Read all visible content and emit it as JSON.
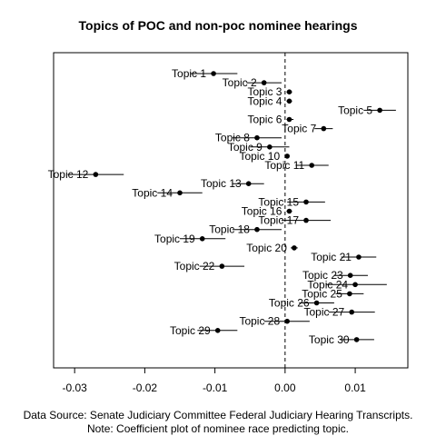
{
  "chart_data": {
    "type": "scatter",
    "title": "Topics of POC and non-poc nominee hearings",
    "xlabel": "",
    "ylabel": "",
    "xlim": [
      -0.033,
      0.0175
    ],
    "xticks": [
      "-0.03",
      "-0.02",
      "-0.01",
      "0.00",
      "0.01"
    ],
    "xtick_values": [
      -0.03,
      -0.02,
      -0.01,
      0.0,
      0.01
    ],
    "reference_line": 0.0,
    "grid": false,
    "legend": "none",
    "points": [
      {
        "label": "Topic 1",
        "estimate": -0.0102,
        "low": -0.0135,
        "high": -0.0068
      },
      {
        "label": "Topic 2",
        "estimate": -0.003,
        "low": -0.0055,
        "high": -0.0005
      },
      {
        "label": "Topic 3",
        "estimate": 0.0006,
        "low": 0.0002,
        "high": 0.001
      },
      {
        "label": "Topic 4",
        "estimate": 0.0006,
        "low": 0.0002,
        "high": 0.001
      },
      {
        "label": "Topic 5",
        "estimate": 0.0135,
        "low": 0.0112,
        "high": 0.0158
      },
      {
        "label": "Topic 6",
        "estimate": 0.0006,
        "low": 0.0002,
        "high": 0.0012
      },
      {
        "label": "Topic 7",
        "estimate": 0.0055,
        "low": 0.0042,
        "high": 0.0068
      },
      {
        "label": "Topic 8",
        "estimate": -0.004,
        "low": -0.0075,
        "high": -0.0005
      },
      {
        "label": "Topic 9",
        "estimate": -0.0022,
        "low": -0.005,
        "high": 0.0006
      },
      {
        "label": "Topic 10",
        "estimate": 0.0003,
        "low": 0.0,
        "high": 0.0006
      },
      {
        "label": "Topic 11",
        "estimate": 0.0038,
        "low": 0.0015,
        "high": 0.0062
      },
      {
        "label": "Topic 12",
        "estimate": -0.027,
        "low": -0.031,
        "high": -0.023
      },
      {
        "label": "Topic 13",
        "estimate": -0.0052,
        "low": -0.0075,
        "high": -0.003
      },
      {
        "label": "Topic 14",
        "estimate": -0.015,
        "low": -0.0182,
        "high": -0.0118
      },
      {
        "label": "Topic 15",
        "estimate": 0.003,
        "low": 0.0003,
        "high": 0.0057
      },
      {
        "label": "Topic 16",
        "estimate": 0.0006,
        "low": 0.0002,
        "high": 0.001
      },
      {
        "label": "Topic 17",
        "estimate": 0.003,
        "low": -0.0005,
        "high": 0.0065
      },
      {
        "label": "Topic 18",
        "estimate": -0.004,
        "low": -0.0075,
        "high": -0.0005
      },
      {
        "label": "Topic 19",
        "estimate": -0.0118,
        "low": -0.015,
        "high": -0.0085
      },
      {
        "label": "Topic 20",
        "estimate": 0.0013,
        "low": 0.0008,
        "high": 0.0018
      },
      {
        "label": "Topic 21",
        "estimate": 0.0105,
        "low": 0.008,
        "high": 0.013
      },
      {
        "label": "Topic 22",
        "estimate": -0.009,
        "low": -0.0122,
        "high": -0.0058
      },
      {
        "label": "Topic 23",
        "estimate": 0.0093,
        "low": 0.007,
        "high": 0.0118
      },
      {
        "label": "Topic 24",
        "estimate": 0.01,
        "low": 0.0058,
        "high": 0.0145
      },
      {
        "label": "Topic 25",
        "estimate": 0.0092,
        "low": 0.0072,
        "high": 0.0112
      },
      {
        "label": "Topic 26",
        "estimate": 0.0045,
        "low": 0.002,
        "high": 0.007
      },
      {
        "label": "Topic 27",
        "estimate": 0.0095,
        "low": 0.0062,
        "high": 0.0128
      },
      {
        "label": "Topic 28",
        "estimate": 0.0003,
        "low": -0.003,
        "high": 0.0035
      },
      {
        "label": "Topic 29",
        "estimate": -0.0096,
        "low": -0.0125,
        "high": -0.0068
      },
      {
        "label": "Topic 30",
        "estimate": 0.0102,
        "low": 0.0078,
        "high": 0.0127
      }
    ]
  },
  "caption": {
    "line1": "Data Source: Senate Judiciary Committee Federal Judiciary Hearing Transcripts.",
    "line2": "Note: Coefficient plot of nominee race predicting topic."
  },
  "colors": {
    "point": "#000000",
    "errorbar": "#000000",
    "reference_line": "#000000",
    "axis": "#000000"
  }
}
